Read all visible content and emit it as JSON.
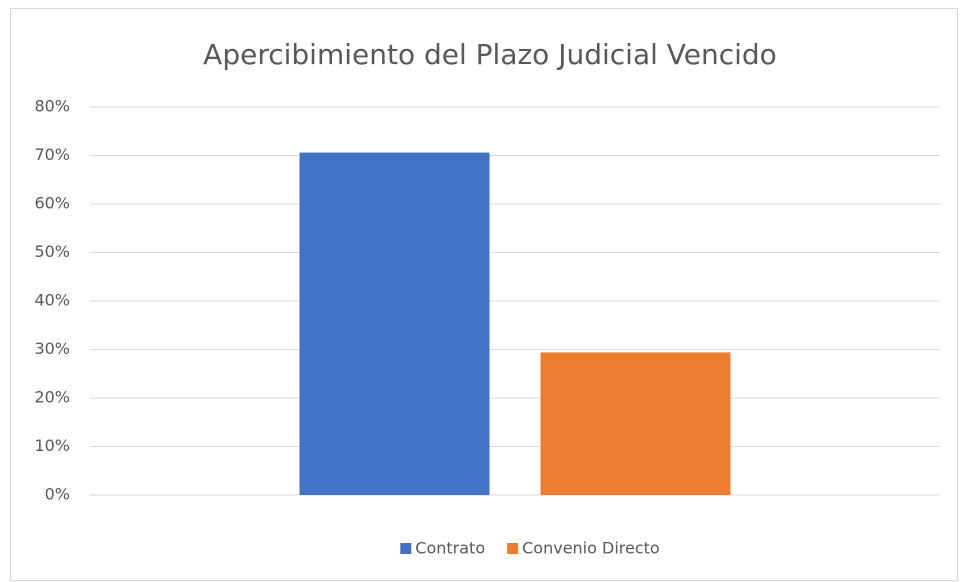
{
  "chart_data": {
    "type": "bar",
    "title": "Apercibimiento del Plazo Judicial Vencido",
    "categories": [
      null
    ],
    "series": [
      {
        "name": "Contrato",
        "color": "#4472c4",
        "values": [
          70.6
        ]
      },
      {
        "name": "Convenio Directo",
        "color": "#ed7d31",
        "values": [
          29.4
        ]
      }
    ],
    "ylim": [
      0,
      80
    ],
    "yticks": [
      {
        "value": 0,
        "label": "0%"
      },
      {
        "value": 10,
        "label": "10%"
      },
      {
        "value": 20,
        "label": "20%"
      },
      {
        "value": 30,
        "label": "30%"
      },
      {
        "value": 40,
        "label": "40%"
      },
      {
        "value": 50,
        "label": "50%"
      },
      {
        "value": 60,
        "label": "60%"
      },
      {
        "value": 70,
        "label": "70%"
      },
      {
        "value": 80,
        "label": "80%"
      }
    ],
    "grid": true,
    "legend": "bottom"
  }
}
